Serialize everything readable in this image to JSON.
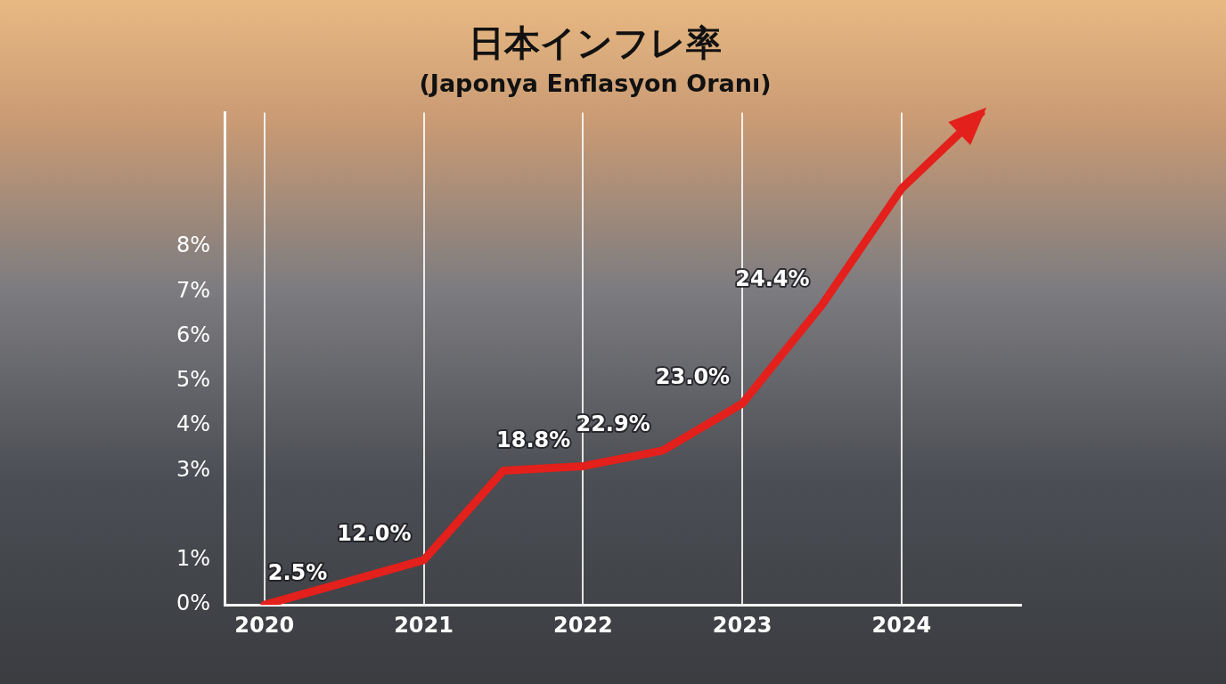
{
  "chart_data": {
    "type": "line",
    "title": "日本インフレ率",
    "subtitle": "(Japonya Enflasyon Oranı)",
    "categories": [
      "2020",
      null,
      "2021",
      null,
      "2022",
      null,
      "2023",
      null,
      "2024",
      null
    ],
    "values": [
      0.0,
      0.5,
      1.0,
      3.0,
      3.1,
      3.45,
      4.5,
      6.7,
      9.3,
      11.0
    ],
    "annotations": [
      "2.5%",
      null,
      "12.0%",
      null,
      "18.8%",
      "22.9%",
      "23.0%",
      "24.4%",
      null,
      null
    ],
    "color": "#e3201b",
    "ylim": [
      0,
      11
    ],
    "yticks": [
      {
        "value": 0,
        "label": "0%"
      },
      {
        "value": 1,
        "label": "1%"
      },
      {
        "value": 3,
        "label": "3%"
      },
      {
        "value": 4,
        "label": "4%"
      },
      {
        "value": 5,
        "label": "5%"
      },
      {
        "value": 6,
        "label": "6%"
      },
      {
        "value": 7,
        "label": "7%"
      },
      {
        "value": 8,
        "label": "8%"
      }
    ],
    "grid": true
  }
}
